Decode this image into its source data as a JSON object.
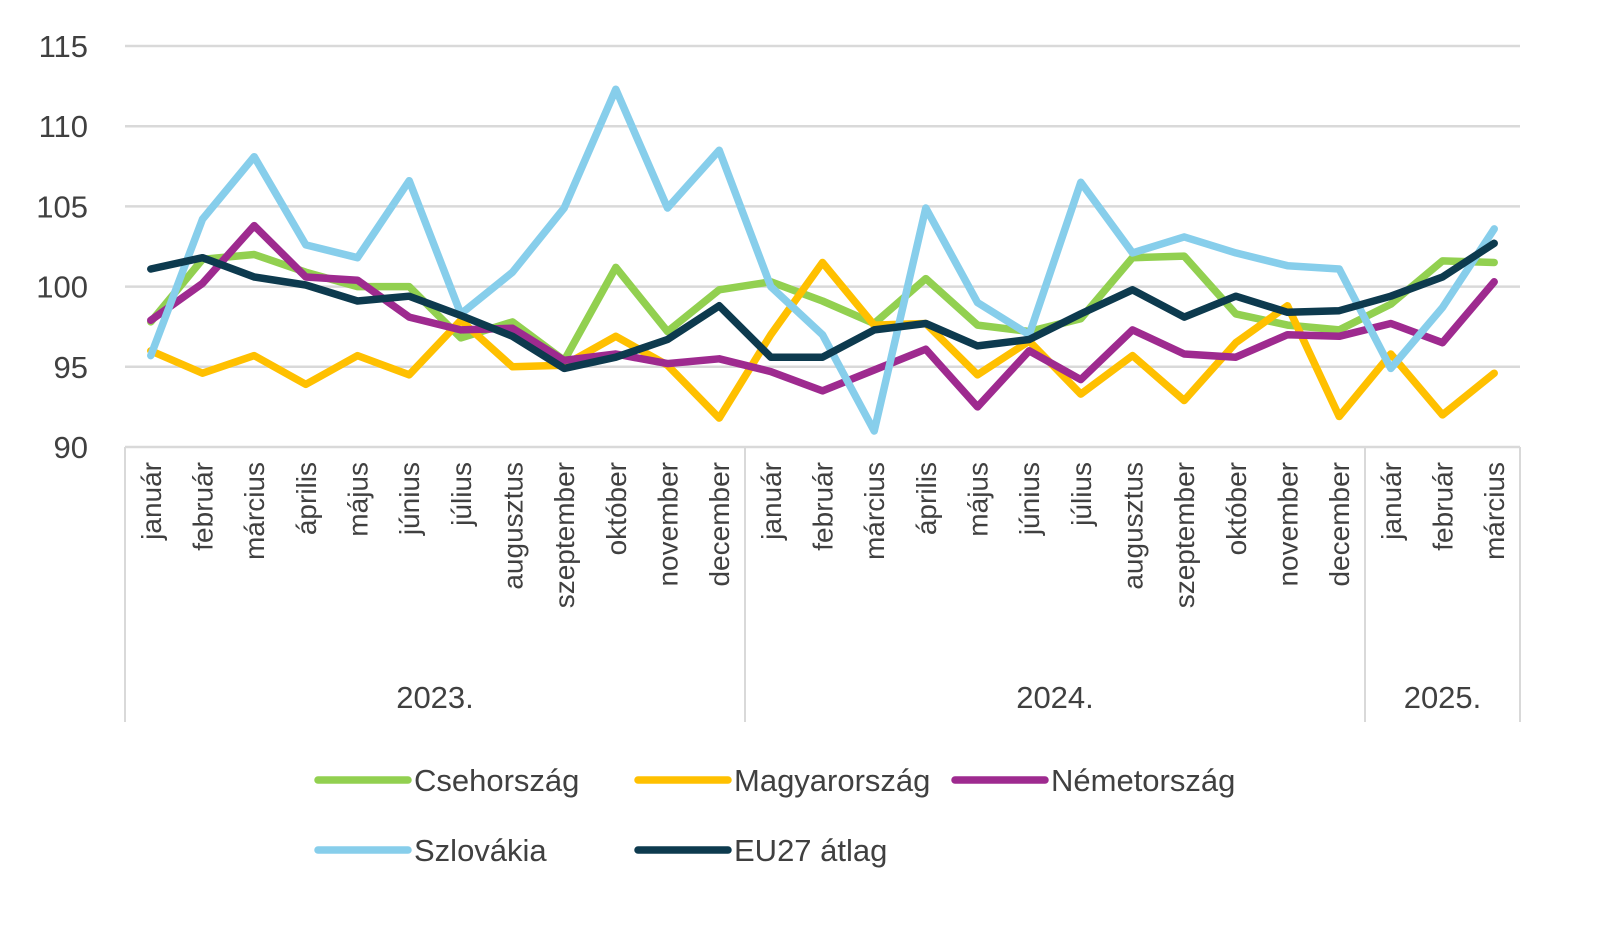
{
  "chart_data": {
    "type": "line",
    "title": "",
    "xlabel": "",
    "ylabel": "",
    "ylim": [
      90,
      115
    ],
    "yticks": [
      90,
      95,
      100,
      105,
      110,
      115
    ],
    "grid": true,
    "legend_position": "bottom",
    "categories": [
      "január",
      "február",
      "március",
      "április",
      "május",
      "június",
      "július",
      "augusztus",
      "szeptember",
      "október",
      "november",
      "december",
      "január",
      "február",
      "március",
      "április",
      "május",
      "június",
      "július",
      "augusztus",
      "szeptember",
      "október",
      "november",
      "december",
      "január",
      "február",
      "március"
    ],
    "year_groups": [
      {
        "label": "2023.",
        "count": 12
      },
      {
        "label": "2024.",
        "count": 12
      },
      {
        "label": "2025.",
        "count": 3
      }
    ],
    "series": [
      {
        "name": "Csehország",
        "color": "#92D050",
        "values": [
          97.8,
          101.7,
          102.0,
          100.9,
          100.0,
          100.0,
          96.8,
          97.8,
          95.4,
          101.2,
          97.2,
          99.8,
          100.3,
          99.1,
          97.7,
          100.5,
          97.6,
          97.2,
          98.0,
          101.8,
          101.9,
          98.3,
          97.6,
          97.3,
          98.9,
          101.6,
          101.5
        ]
      },
      {
        "name": "Magyarország",
        "color": "#FFC000",
        "values": [
          96.0,
          94.6,
          95.7,
          93.9,
          95.7,
          94.5,
          97.9,
          95.0,
          95.1,
          96.9,
          95.1,
          91.8,
          97.0,
          101.5,
          97.6,
          97.7,
          94.5,
          96.6,
          93.3,
          95.7,
          92.9,
          96.5,
          98.8,
          91.9,
          95.8,
          92.0,
          94.6
        ]
      },
      {
        "name": "Németország",
        "color": "#9E2A8F",
        "values": [
          97.9,
          100.2,
          103.8,
          100.6,
          100.4,
          98.1,
          97.3,
          97.4,
          95.4,
          95.8,
          95.2,
          95.5,
          94.7,
          93.5,
          94.8,
          96.1,
          92.5,
          96.0,
          94.2,
          97.3,
          95.8,
          95.6,
          97.0,
          96.9,
          97.7,
          96.5,
          100.3
        ]
      },
      {
        "name": "Szlovákia",
        "color": "#87CEEB",
        "values": [
          95.7,
          104.2,
          108.1,
          102.6,
          101.8,
          106.6,
          98.3,
          100.9,
          104.9,
          112.3,
          104.9,
          108.5,
          100.0,
          97.0,
          91.0,
          104.9,
          99.0,
          97.0,
          106.5,
          102.1,
          103.1,
          102.1,
          101.3,
          101.1,
          94.9,
          98.7,
          103.6
        ]
      },
      {
        "name": "EU27 átlag",
        "color": "#0D3A4E",
        "values": [
          101.1,
          101.8,
          100.6,
          100.1,
          99.1,
          99.4,
          98.2,
          96.9,
          94.9,
          95.6,
          96.7,
          98.8,
          95.6,
          95.6,
          97.3,
          97.7,
          96.3,
          96.7,
          98.3,
          99.8,
          98.1,
          99.4,
          98.4,
          98.5,
          99.4,
          100.6,
          102.7
        ]
      }
    ]
  }
}
